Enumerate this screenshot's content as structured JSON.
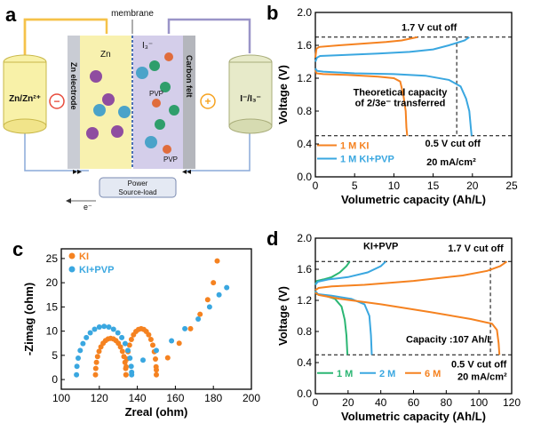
{
  "colors": {
    "orange": "#f58220",
    "blue": "#3aa7e0",
    "green": "#2bb673",
    "zinc_bar": "#f5e88a",
    "cathode_bar": "#b8b0da",
    "red_minus": "#e84b3c",
    "amber_plus": "#f6a21e"
  },
  "panel_a": {
    "letter": "a",
    "membrane_label": "membrane",
    "left_reservoir_label": "Zn/Zn²⁺",
    "right_reservoir_label": "I⁻/I₃⁻",
    "minus_sign": "−",
    "plus_sign": "+",
    "zn_electrode_label": "Zn electrode",
    "carbon_felt_label": "Carbon felt",
    "zn_label": "Zn",
    "i3_label": "I₃⁻",
    "pvp_label": "PVP",
    "pvp_label_2": "PVP",
    "power_label": "Power",
    "source_load_label": "Source-load",
    "electron_label": "e⁻",
    "icons": [
      "zn2plus-ion-icon",
      "k-ion-icon",
      "iodide-ion-icon",
      "pvp-molecule-icon"
    ]
  },
  "chart_data": [
    {
      "id": "b",
      "letter": "b",
      "type": "line",
      "xlabel": "Volumetric capacity (Ah/L)",
      "ylabel": "Voltage (V)",
      "xlim": [
        0,
        25
      ],
      "ylim": [
        0.0,
        2.0
      ],
      "xticks": [
        0,
        5,
        10,
        15,
        20,
        25
      ],
      "yticks": [
        0.0,
        0.4,
        0.8,
        1.2,
        1.6,
        2.0
      ],
      "hlines": [
        1.7,
        0.5
      ],
      "vline": 18,
      "annotations": {
        "top_cutoff": "1.7 V cut off",
        "theoretical_1": "Theoretical capacity",
        "theoretical_2": "of 2/3e⁻ transferred",
        "bottom_cutoff": "0.5 V cut off",
        "current_density": "20 mA/cm²"
      },
      "series": [
        {
          "name": "1 M KI",
          "color": "#f58220",
          "charge": [
            [
              0,
              1.45
            ],
            [
              0.15,
              1.56
            ],
            [
              0.5,
              1.58
            ],
            [
              3,
              1.6
            ],
            [
              6,
              1.62
            ],
            [
              9,
              1.64
            ],
            [
              11,
              1.66
            ],
            [
              12,
              1.68
            ],
            [
              13,
              1.7
            ]
          ],
          "discharge": [
            [
              0,
              1.3
            ],
            [
              0.15,
              1.26
            ],
            [
              1,
              1.25
            ],
            [
              4,
              1.24
            ],
            [
              8,
              1.22
            ],
            [
              10,
              1.2
            ],
            [
              10.8,
              1.16
            ],
            [
              11.2,
              1.0
            ],
            [
              11.5,
              0.8
            ],
            [
              11.6,
              0.6
            ],
            [
              11.7,
              0.5
            ]
          ]
        },
        {
          "name": "1 M KI+PVP",
          "color": "#3aa7e0",
          "charge": [
            [
              0,
              1.4
            ],
            [
              0.2,
              1.45
            ],
            [
              0.6,
              1.47
            ],
            [
              3,
              1.48
            ],
            [
              8,
              1.5
            ],
            [
              12,
              1.52
            ],
            [
              15,
              1.55
            ],
            [
              17,
              1.6
            ],
            [
              19,
              1.66
            ],
            [
              19.6,
              1.7
            ]
          ],
          "discharge": [
            [
              0,
              1.32
            ],
            [
              0.2,
              1.29
            ],
            [
              1,
              1.28
            ],
            [
              5,
              1.26
            ],
            [
              10,
              1.25
            ],
            [
              14,
              1.23
            ],
            [
              17,
              1.18
            ],
            [
              18.5,
              1.1
            ],
            [
              19.2,
              0.95
            ],
            [
              19.6,
              0.8
            ],
            [
              19.8,
              0.6
            ],
            [
              19.9,
              0.5
            ]
          ]
        }
      ]
    },
    {
      "id": "c",
      "letter": "c",
      "type": "scatter",
      "xlabel": "Zreal (ohm)",
      "ylabel": "-Zimag (ohm)",
      "xlim": [
        100,
        200
      ],
      "ylim": [
        -2,
        27
      ],
      "xticks": [
        100,
        120,
        140,
        160,
        180,
        200
      ],
      "yticks": [
        0,
        5,
        10,
        15,
        20,
        25
      ],
      "series": [
        {
          "name": "KI",
          "color": "#f58220",
          "semicircles": [
            {
              "x0": 118,
              "x1": 134,
              "peak": 7.5
            },
            {
              "x0": 134,
              "x1": 150,
              "peak": 9.5
            }
          ],
          "tail": [
            [
              150,
              2
            ],
            [
              156,
              4.5
            ],
            [
              162,
              7.5
            ],
            [
              168,
              10.5
            ],
            [
              173,
              13.5
            ],
            [
              177,
              16.5
            ],
            [
              180,
              20
            ],
            [
              182,
              24.5
            ]
          ]
        },
        {
          "name": "KI+PVP",
          "color": "#3aa7e0",
          "semicircles": [
            {
              "x0": 108,
              "x1": 137,
              "peak": 10
            }
          ],
          "tail": [
            [
              137,
              1.5
            ],
            [
              143,
              4
            ],
            [
              150,
              6
            ],
            [
              158,
              8
            ],
            [
              165,
              10.5
            ],
            [
              172,
              12.5
            ],
            [
              178,
              15
            ],
            [
              183,
              17.5
            ],
            [
              187,
              19
            ]
          ]
        }
      ]
    },
    {
      "id": "d",
      "letter": "d",
      "type": "line",
      "xlabel": "Volumetric capacity (Ah/L)",
      "ylabel": "Voltage (V)",
      "xlim": [
        0,
        120
      ],
      "ylim": [
        0.0,
        2.0
      ],
      "xticks": [
        0,
        20,
        40,
        60,
        80,
        100,
        120
      ],
      "yticks": [
        0.0,
        0.4,
        0.8,
        1.2,
        1.6,
        2.0
      ],
      "hlines": [
        1.7,
        0.5
      ],
      "vline": 107,
      "annotations": {
        "title": "KI+PVP",
        "top_cutoff": "1.7 V cut off",
        "capacity": "Capacity :107 Ah/L",
        "bottom_cutoff": "0.5 V cut off",
        "current_density": "20 mA/cm²"
      },
      "series": [
        {
          "name": "1 M",
          "color": "#2bb673",
          "charge": [
            [
              0,
              1.4
            ],
            [
              1,
              1.45
            ],
            [
              5,
              1.47
            ],
            [
              10,
              1.5
            ],
            [
              15,
              1.56
            ],
            [
              19,
              1.64
            ],
            [
              21,
              1.7
            ]
          ],
          "discharge": [
            [
              0,
              1.32
            ],
            [
              1,
              1.28
            ],
            [
              6,
              1.26
            ],
            [
              12,
              1.22
            ],
            [
              16,
              1.12
            ],
            [
              18,
              0.95
            ],
            [
              19,
              0.75
            ],
            [
              19.6,
              0.5
            ]
          ]
        },
        {
          "name": "2 M",
          "color": "#3aa7e0",
          "charge": [
            [
              0,
              1.4
            ],
            [
              1.5,
              1.44
            ],
            [
              8,
              1.47
            ],
            [
              20,
              1.5
            ],
            [
              32,
              1.56
            ],
            [
              40,
              1.64
            ],
            [
              43,
              1.7
            ]
          ],
          "discharge": [
            [
              0,
              1.32
            ],
            [
              1.5,
              1.28
            ],
            [
              10,
              1.26
            ],
            [
              22,
              1.22
            ],
            [
              30,
              1.15
            ],
            [
              33,
              1.0
            ],
            [
              34,
              0.75
            ],
            [
              34.5,
              0.5
            ]
          ]
        },
        {
          "name": "6 M",
          "color": "#f58220",
          "charge": [
            [
              0,
              1.33
            ],
            [
              2,
              1.36
            ],
            [
              10,
              1.38
            ],
            [
              30,
              1.4
            ],
            [
              60,
              1.45
            ],
            [
              90,
              1.52
            ],
            [
              105,
              1.58
            ],
            [
              113,
              1.64
            ],
            [
              117,
              1.7
            ]
          ],
          "discharge": [
            [
              0,
              1.3
            ],
            [
              2,
              1.27
            ],
            [
              15,
              1.22
            ],
            [
              40,
              1.15
            ],
            [
              70,
              1.05
            ],
            [
              95,
              0.96
            ],
            [
              108,
              0.9
            ],
            [
              111,
              0.82
            ],
            [
              112,
              0.65
            ],
            [
              112.5,
              0.5
            ]
          ]
        }
      ]
    }
  ]
}
